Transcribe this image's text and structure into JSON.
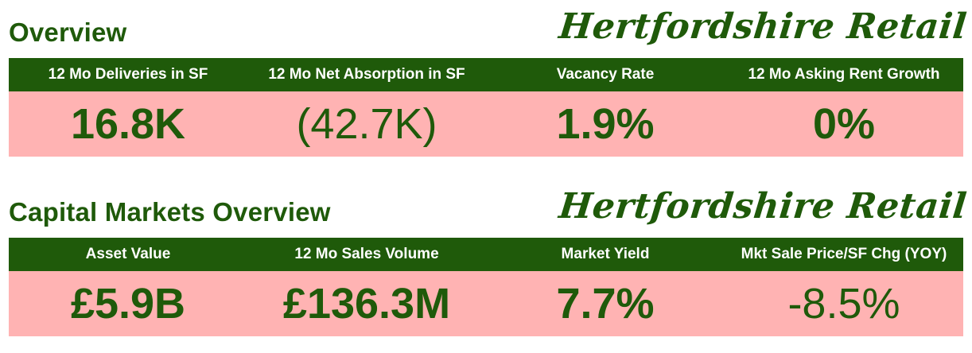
{
  "overview": {
    "title": "Overview",
    "brand": "Hertfordshire Retail",
    "metrics": [
      {
        "label": "12 Mo Deliveries in SF",
        "value": "16.8K"
      },
      {
        "label": "12 Mo Net Absorption in SF",
        "value": "(42.7K)"
      },
      {
        "label": "Vacancy Rate",
        "value": "1.9%"
      },
      {
        "label": "12 Mo Asking Rent Growth",
        "value": "0%"
      }
    ]
  },
  "capital": {
    "title": "Capital Markets Overview",
    "brand": "Hertfordshire Retail",
    "metrics": [
      {
        "label": "Asset Value",
        "value": "£5.9B"
      },
      {
        "label": "12 Mo Sales Volume",
        "value": "£136.3M"
      },
      {
        "label": "Market Yield",
        "value": "7.7%"
      },
      {
        "label": "Mkt Sale Price/SF Chg (YOY)",
        "value": "-8.5%"
      }
    ]
  },
  "colors": {
    "brand_green": "#1f5a0a",
    "value_background": "#ffb3b3",
    "header_text": "#ffffff"
  }
}
